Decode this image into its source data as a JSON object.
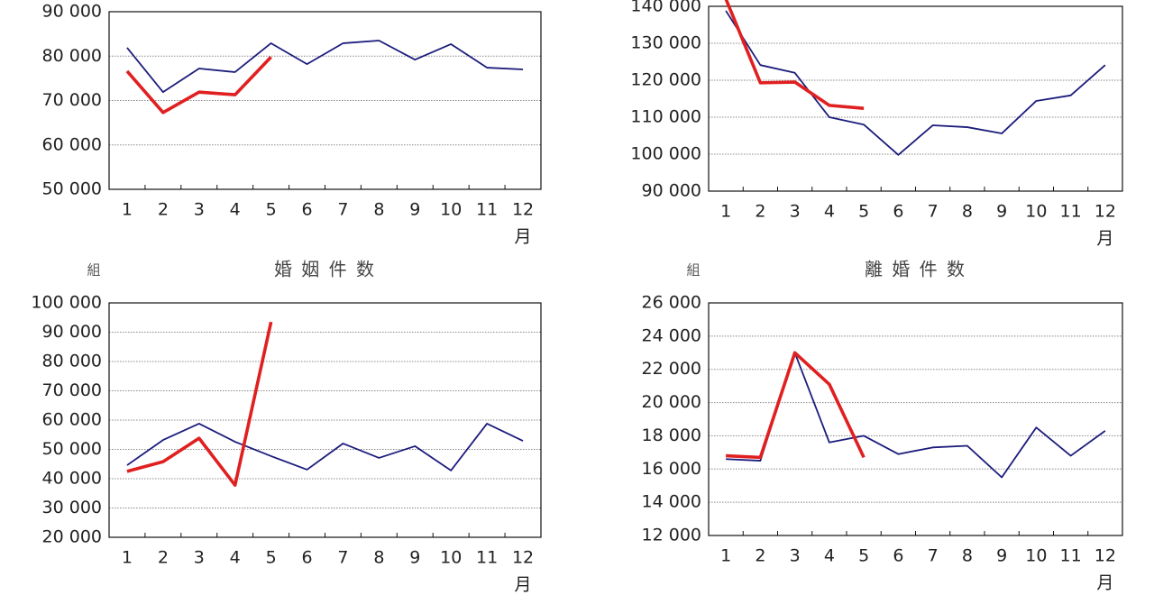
{
  "chart_data": [
    {
      "type": "line",
      "xlabel": "月",
      "categories": [
        "1",
        "2",
        "3",
        "4",
        "5",
        "6",
        "7",
        "8",
        "9",
        "10",
        "11",
        "12"
      ],
      "series": [
        {
          "color": "#1c1c7c",
          "values": [
            81900,
            71900,
            77200,
            76400,
            82900,
            78200,
            82900,
            83500,
            79200,
            82700,
            77400,
            77000
          ]
        },
        {
          "color": "#e02020",
          "values": [
            76600,
            67300,
            71900,
            71300,
            79800,
            null,
            null,
            null,
            null,
            null,
            null,
            null
          ]
        }
      ],
      "ylim": [
        50000,
        90000
      ],
      "yticks": [
        {
          "value": 50000,
          "label": "50 000"
        },
        {
          "value": 60000,
          "label": "60 000"
        },
        {
          "value": 70000,
          "label": "70 000"
        },
        {
          "value": 80000,
          "label": "80 000"
        },
        {
          "value": 90000,
          "label": "90 000"
        }
      ],
      "grid": true
    },
    {
      "type": "line",
      "xlabel": "月",
      "categories": [
        "1",
        "2",
        "3",
        "4",
        "5",
        "6",
        "7",
        "8",
        "9",
        "10",
        "11",
        "12"
      ],
      "series": [
        {
          "color": "#1c1c7c",
          "values": [
            138800,
            124100,
            122000,
            110000,
            108000,
            99800,
            107800,
            107300,
            105600,
            114400,
            115900,
            124100
          ]
        },
        {
          "color": "#e02020",
          "values": [
            142000,
            119300,
            119500,
            113200,
            112400,
            null,
            null,
            null,
            null,
            null,
            null,
            null
          ]
        }
      ],
      "ylim": [
        90000,
        140000
      ],
      "yticks": [
        {
          "value": 90000,
          "label": "90 000"
        },
        {
          "value": 100000,
          "label": "100 000"
        },
        {
          "value": 110000,
          "label": "110 000"
        },
        {
          "value": 120000,
          "label": "120 000"
        },
        {
          "value": 130000,
          "label": "130 000"
        },
        {
          "value": 140000,
          "label": "140 000"
        }
      ],
      "grid": true
    },
    {
      "type": "line",
      "title": "婚 姻 件 数",
      "ylabel": "組",
      "xlabel": "月",
      "categories": [
        "1",
        "2",
        "3",
        "4",
        "5",
        "6",
        "7",
        "8",
        "9",
        "10",
        "11",
        "12"
      ],
      "series": [
        {
          "color": "#1c1c7c",
          "values": [
            44600,
            53200,
            58800,
            52600,
            47700,
            43100,
            52000,
            47100,
            51100,
            42800,
            58800,
            52900
          ]
        },
        {
          "color": "#e02020",
          "values": [
            42500,
            45800,
            53800,
            37800,
            93500,
            null,
            null,
            null,
            null,
            null,
            null,
            null
          ]
        }
      ],
      "ylim": [
        20000,
        100000
      ],
      "yticks": [
        {
          "value": 20000,
          "label": "20 000"
        },
        {
          "value": 30000,
          "label": "30 000"
        },
        {
          "value": 40000,
          "label": "40 000"
        },
        {
          "value": 50000,
          "label": "50 000"
        },
        {
          "value": 60000,
          "label": "60 000"
        },
        {
          "value": 70000,
          "label": "70 000"
        },
        {
          "value": 80000,
          "label": "80 000"
        },
        {
          "value": 90000,
          "label": "90 000"
        },
        {
          "value": 100000,
          "label": "100 000"
        }
      ],
      "grid": true
    },
    {
      "type": "line",
      "title": "離 婚 件 数",
      "ylabel": "組",
      "xlabel": "月",
      "categories": [
        "1",
        "2",
        "3",
        "4",
        "5",
        "6",
        "7",
        "8",
        "9",
        "10",
        "11",
        "12"
      ],
      "series": [
        {
          "color": "#1c1c7c",
          "values": [
            16600,
            16500,
            23000,
            17600,
            18000,
            16900,
            17300,
            17400,
            15500,
            18500,
            16800,
            18300
          ]
        },
        {
          "color": "#e02020",
          "values": [
            16800,
            16700,
            23000,
            21100,
            16700,
            null,
            null,
            null,
            null,
            null,
            null,
            null
          ]
        }
      ],
      "ylim": [
        12000,
        26000
      ],
      "yticks": [
        {
          "value": 12000,
          "label": "12 000"
        },
        {
          "value": 14000,
          "label": "14 000"
        },
        {
          "value": 16000,
          "label": "16 000"
        },
        {
          "value": 18000,
          "label": "18 000"
        },
        {
          "value": 20000,
          "label": "20 000"
        },
        {
          "value": 22000,
          "label": "22 000"
        },
        {
          "value": 24000,
          "label": "24 000"
        },
        {
          "value": 26000,
          "label": "26 000"
        }
      ],
      "grid": true
    }
  ]
}
